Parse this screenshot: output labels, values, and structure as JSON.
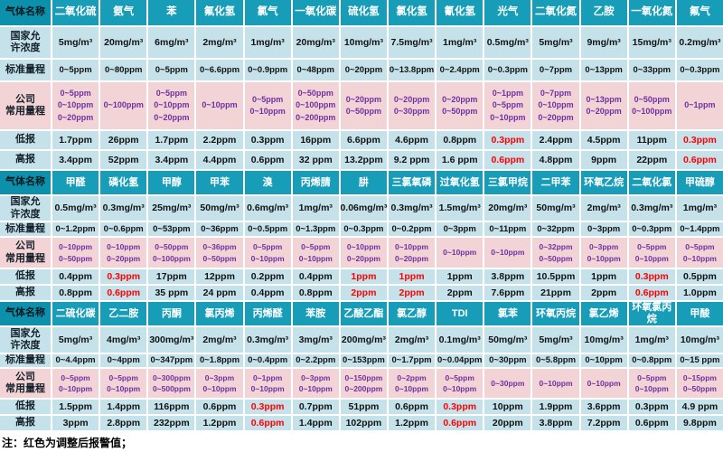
{
  "note": "注：红色为调整后报警值；",
  "labels": {
    "gas_name": "气体名称",
    "national_limit": [
      "国家允",
      "许浓度"
    ],
    "standard_range": "标准量程",
    "company_range": [
      "公司",
      "常用量程"
    ],
    "low_alarm": "低报",
    "high_alarm": "高报"
  },
  "colors": {
    "header_teal": "#189db8",
    "header_label_teal": "#0d90ab",
    "row_blue": "#c5e2eb",
    "row_pink": "#f2d4d7",
    "company_purple": "#7030a0",
    "alarm_red": "#ff0000"
  },
  "blocks": [
    {
      "gases": [
        "二氧化硫",
        "氨气",
        "苯",
        "氟化氢",
        "氯气",
        "一氧化碳",
        "硫化氢",
        "氯化氢",
        "氰化氢",
        "光气",
        "二氧化氮",
        "乙胺",
        "一氧化氮",
        "氟气"
      ],
      "national": [
        "5mg/m³",
        "20mg/m³",
        "6mg/m³",
        "2mg/m³",
        "1mg/m³",
        "20mg/m³",
        "10mg/m³",
        "7.5mg/m³",
        "1mg/m³",
        "0.5mg/m³",
        "5mg/m³",
        "9mg/m³",
        "15mg/m³",
        "0.2mg/m³"
      ],
      "standard": [
        "0~5ppm",
        "0~80ppm",
        "0~5ppm",
        "0~6.6ppm",
        "0~0.9ppm",
        "0~48ppm",
        "0~20ppm",
        "0~13.8ppm",
        "0~2.4ppm",
        "0~0.3ppm",
        "0~7ppm",
        "0~13ppm",
        "0~33ppm",
        "0~0.3ppm"
      ],
      "company": [
        [
          "0~5ppm",
          "0~10ppm",
          "0~20ppm"
        ],
        [
          "0~100ppm"
        ],
        [
          "0~5ppm",
          "0~10ppm",
          "0~20ppm"
        ],
        [
          "0~10ppm"
        ],
        [
          "0~5ppm",
          "0~10ppm"
        ],
        [
          "0~50ppm",
          "0~100ppm",
          "0~200ppm"
        ],
        [
          "0~20ppm",
          "0~50ppm"
        ],
        [
          "0~20ppm",
          "0~30ppm"
        ],
        [
          "0~20ppm",
          "0~50ppm"
        ],
        [
          "0~1ppm",
          "0~5ppm",
          "0~10ppm"
        ],
        [
          "0~7ppm",
          "0~10ppm",
          "0~20ppm"
        ],
        [
          "0~13ppm",
          "0~20ppm"
        ],
        [
          "0~50ppm",
          "0~100ppm"
        ],
        [
          "0~1ppm"
        ]
      ],
      "low": [
        "1.7ppm",
        "26ppm",
        "1.7ppm",
        "2.2ppm",
        "0.3ppm",
        "16ppm",
        "6.6ppm",
        "4.6ppm",
        "0.8ppm",
        "0.3ppm",
        "2.4ppm",
        "4.5ppm",
        "11ppm",
        "0.3ppm"
      ],
      "high": [
        "3.4ppm",
        "52ppm",
        "3.4ppm",
        "4.4ppm",
        "0.6ppm",
        "32 ppm",
        "13.2ppm",
        "9.2 ppm",
        "1.6 ppm",
        "0.6ppm",
        "4.8ppm",
        "9ppm",
        "22ppm",
        "0.6ppm"
      ],
      "low_red": [
        9,
        13
      ],
      "high_red": [
        9,
        13
      ]
    },
    {
      "gases": [
        "甲醛",
        "磷化氢",
        "甲醇",
        "甲苯",
        "溴",
        "丙烯腈",
        "肼",
        "三氯氧磷",
        "过氧化氢",
        "三氯甲烷",
        "二甲苯",
        "环氧乙烷",
        "二氧化氯",
        "甲硫醇"
      ],
      "national": [
        "0.5mg/m³",
        "0.3mg/m³",
        "25mg/m³",
        "50mg/m³",
        "0.6mg/m³",
        "1mg/m³",
        "0.06mg/m³",
        "0.3mg/m³",
        "1.5mg/m³",
        "20mg/m³",
        "50mg/m³",
        "2mg/m³",
        "0.3mg/m³",
        "1mg/m³"
      ],
      "standard": [
        "0~1.2ppm",
        "0~0.6ppm",
        "0~53ppm",
        "0~36ppm",
        "0~0.5ppm",
        "0~1.3ppm",
        "0~0.3ppm",
        "0~0.2ppm",
        "0~3ppm",
        "0~11ppm",
        "0~32ppm",
        "0~3ppm",
        "0~0.3ppm",
        "0~1.4ppm"
      ],
      "company": [
        [
          "0~10ppm",
          "0~50ppm"
        ],
        [
          "0~10ppm",
          "0~20ppm"
        ],
        [
          "0~50ppm",
          "0~100ppm"
        ],
        [
          "0~36ppm",
          "0~50ppm"
        ],
        [
          "0~5ppm",
          "0~10ppm"
        ],
        [
          "0~5ppm",
          "0~10ppm"
        ],
        [
          "0~10ppm",
          "0~20ppm"
        ],
        [
          "0~10ppm",
          "0~20ppm"
        ],
        [
          "0~10ppm"
        ],
        [
          "0~10ppm"
        ],
        [
          "0~32ppm",
          "0~50ppm"
        ],
        [
          "0~3ppm",
          "0~10ppm"
        ],
        [
          "0~5ppm",
          "0~10ppm"
        ],
        [
          "0~5ppm",
          "0~10ppm"
        ]
      ],
      "low": [
        "0.4ppm",
        "0.3ppm",
        "17ppm",
        "12ppm",
        "0.2ppm",
        "0.4ppm",
        "1ppm",
        "1ppm",
        "1ppm",
        "3.8ppm",
        "10.5ppm",
        "1ppm",
        "0.3ppm",
        "0.5ppm"
      ],
      "high": [
        "0.8ppm",
        "0.6ppm",
        "35 ppm",
        "24 ppm",
        "0.4ppm",
        "0.8ppm",
        "2ppm",
        "2ppm",
        "2ppm",
        "7.6ppm",
        "21ppm",
        "2ppm",
        "0.6ppm",
        "1.0ppm"
      ],
      "low_red": [
        1,
        6,
        7,
        12
      ],
      "high_red": [
        1,
        6,
        7,
        12
      ]
    },
    {
      "gases": [
        "二硫化碳",
        "乙二胺",
        "丙酮",
        "氯丙烯",
        "丙烯醛",
        "苯胺",
        "乙酸乙酯",
        "氯乙醇",
        "TDI",
        "氯苯",
        "环氧丙烷",
        "氯乙烯",
        "环氧氯丙烷",
        "甲酸"
      ],
      "national": [
        "5mg/m³",
        "4mg/m³",
        "300mg/m³",
        "2mg/m³",
        "0.3mg/m³",
        "3mg/m³",
        "200mg/m³",
        "2mg/m³",
        "0.1mg/m³",
        "50mg/m³",
        "5mg/m³",
        "10mg/m³",
        "1mg/m³",
        "10mg/m³"
      ],
      "standard": [
        "0~4.4ppm",
        "0~4ppm",
        "0~347ppm",
        "0~1.8ppm",
        "0~0.4ppm",
        "0~2.2ppm",
        "0~153ppm",
        "0~1.7ppm",
        "0~0.04ppm",
        "0~30ppm",
        "0~5.8ppm",
        "0~10ppm",
        "0~0.8ppm",
        "0~15 ppm"
      ],
      "company": [
        [
          "0~5ppm",
          "0~10ppm"
        ],
        [
          "0~5ppm",
          "0~10ppm"
        ],
        [
          "0~300ppm",
          "0~500ppm"
        ],
        [
          "0~3ppm",
          "0~10ppm"
        ],
        [
          "0~1ppm",
          "0~10ppm"
        ],
        [
          "0~3ppm",
          "0~10ppm"
        ],
        [
          "0~150ppm",
          "0~200ppm"
        ],
        [
          "0~2ppm",
          "0~10ppm"
        ],
        [
          "0~5ppm",
          "0~10ppm"
        ],
        [
          "0~30ppm"
        ],
        [
          "0~10ppm"
        ],
        [
          "0~10ppm"
        ],
        [
          "0~5ppm",
          "0~10ppm"
        ],
        [
          "0~15ppm",
          "0~50ppm"
        ]
      ],
      "low": [
        "1.5ppm",
        "1.4ppm",
        "116ppm",
        "0.6ppm",
        "0.3ppm",
        "0.7ppm",
        "51ppm",
        "0.6ppm",
        "0.3ppm",
        "10ppm",
        "1.9ppm",
        "3.6ppm",
        "0.3ppm",
        "4.9 ppm"
      ],
      "high": [
        "3ppm",
        "2.8ppm",
        "232ppm",
        "1.2ppm",
        "0.6ppm",
        "1.4ppm",
        "102ppm",
        "1.2ppm",
        "0.6ppm",
        "20ppm",
        "3.8ppm",
        "7.2ppm",
        "0.6ppm",
        "9.8ppm"
      ],
      "low_red": [
        4,
        8
      ],
      "high_red": [
        4,
        8
      ]
    }
  ]
}
